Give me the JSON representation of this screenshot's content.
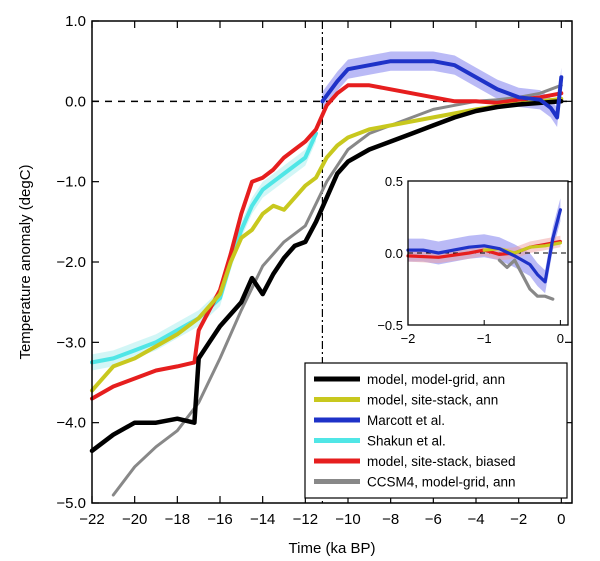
{
  "chart_data": [
    {
      "type": "line",
      "xlabel": "Time (ka BP)",
      "ylabel": "Temperature anomaly (degC)",
      "xlim": [
        -22,
        0.5
      ],
      "ylim": [
        -5.0,
        1.0
      ],
      "x_ticks": [
        -22,
        -20,
        -18,
        -16,
        -14,
        -12,
        -10,
        -8,
        -6,
        -4,
        -2,
        0
      ],
      "x_tick_labels": [
        "−22",
        "−20",
        "−18",
        "−16",
        "−14",
        "−12",
        "−10",
        "−8",
        "−6",
        "−4",
        "−2",
        "0"
      ],
      "y_ticks": [
        -5.0,
        -4.0,
        -3.0,
        -2.0,
        -1.0,
        0.0,
        1.0
      ],
      "y_tick_labels": [
        "−5.0",
        "−4.0",
        "−3.0",
        "−2.0",
        "−1.0",
        "0.0",
        "1.0"
      ],
      "reference_lines": {
        "zero_line_y": 0.0,
        "vertical_line_x": -11.2
      },
      "grid": false,
      "legend_position": "bottom-right",
      "series": [
        {
          "name": "model, model-grid, ann",
          "color": "#000000",
          "x": [
            -22,
            -21,
            -20,
            -19,
            -18,
            -17.2,
            -17,
            -16.5,
            -16,
            -15,
            -14.5,
            -14,
            -13.5,
            -13,
            -12.5,
            -12,
            -11.5,
            -11,
            -10.5,
            -10,
            -9,
            -8,
            -7,
            -6,
            -5,
            -4,
            -3,
            -2,
            -1,
            0
          ],
          "y": [
            -4.35,
            -4.15,
            -4.0,
            -4.0,
            -3.95,
            -4.0,
            -3.2,
            -3.0,
            -2.8,
            -2.5,
            -2.2,
            -2.4,
            -2.15,
            -1.95,
            -1.8,
            -1.75,
            -1.5,
            -1.2,
            -0.9,
            -0.75,
            -0.6,
            -0.5,
            -0.4,
            -0.3,
            -0.2,
            -0.12,
            -0.07,
            -0.04,
            -0.02,
            0.0
          ]
        },
        {
          "name": "model, site-stack, ann",
          "color": "#c8c81e",
          "x": [
            -22,
            -21,
            -20,
            -19,
            -18,
            -17,
            -16,
            -15.5,
            -15,
            -14.5,
            -14,
            -13.5,
            -13,
            -12.5,
            -12,
            -11.5,
            -11,
            -10.5,
            -10,
            -9,
            -8,
            -7,
            -6,
            -5,
            -4,
            -3,
            -2,
            -1,
            0
          ],
          "y": [
            -3.6,
            -3.3,
            -3.2,
            -3.05,
            -2.9,
            -2.7,
            -2.4,
            -2.0,
            -1.7,
            -1.6,
            -1.4,
            -1.3,
            -1.35,
            -1.2,
            -1.05,
            -0.95,
            -0.7,
            -0.55,
            -0.45,
            -0.35,
            -0.3,
            -0.25,
            -0.2,
            -0.15,
            -0.1,
            -0.06,
            -0.03,
            0.0,
            0.03
          ]
        },
        {
          "name": "Marcott et al.",
          "color": "#1e32c8",
          "x": [
            -11.2,
            -10.5,
            -10,
            -9,
            -8,
            -7,
            -6,
            -5,
            -4,
            -3,
            -2,
            -1,
            -0.5,
            -0.2,
            0
          ],
          "y": [
            0.0,
            0.25,
            0.4,
            0.45,
            0.5,
            0.5,
            0.5,
            0.45,
            0.3,
            0.15,
            0.05,
            0.02,
            -0.08,
            -0.2,
            0.3
          ]
        },
        {
          "name": "Shakun et al.",
          "color": "#50e6e6",
          "x": [
            -22,
            -21,
            -20,
            -19,
            -18,
            -17,
            -16,
            -15.5,
            -15,
            -14.5,
            -14,
            -13,
            -12,
            -11.5
          ],
          "y": [
            -3.25,
            -3.2,
            -3.1,
            -3.0,
            -2.85,
            -2.7,
            -2.45,
            -2.0,
            -1.6,
            -1.3,
            -1.1,
            -0.9,
            -0.7,
            -0.4
          ]
        },
        {
          "name": "model, site-stack, biased",
          "color": "#e61e1e",
          "x": [
            -22,
            -21,
            -20,
            -19,
            -18,
            -17.2,
            -17,
            -16.5,
            -16,
            -15.5,
            -15,
            -14.5,
            -14,
            -13.5,
            -13,
            -12.5,
            -12,
            -11.5,
            -11,
            -10.5,
            -10,
            -9,
            -8,
            -7,
            -6,
            -5,
            -4,
            -3,
            -2,
            -1,
            0
          ],
          "y": [
            -3.7,
            -3.55,
            -3.45,
            -3.35,
            -3.3,
            -3.25,
            -2.85,
            -2.6,
            -2.35,
            -1.9,
            -1.4,
            -1.0,
            -0.95,
            -0.85,
            -0.7,
            -0.6,
            -0.5,
            -0.35,
            -0.05,
            0.1,
            0.2,
            0.2,
            0.15,
            0.1,
            0.05,
            0.0,
            0.0,
            -0.02,
            0.02,
            0.05,
            0.1
          ]
        },
        {
          "name": "CCSM4, model-grid, ann",
          "color": "#888888",
          "x": [
            -21,
            -20,
            -19,
            -18,
            -17,
            -16,
            -15,
            -14,
            -13,
            -12,
            -11,
            -10,
            -9,
            -8,
            -7,
            -6,
            -5,
            -4,
            -3,
            -2,
            -1,
            0
          ],
          "y": [
            -4.9,
            -4.55,
            -4.3,
            -4.1,
            -3.75,
            -3.2,
            -2.6,
            -2.05,
            -1.75,
            -1.55,
            -1.0,
            -0.6,
            -0.4,
            -0.3,
            -0.2,
            -0.1,
            -0.05,
            0.0,
            0.02,
            0.05,
            0.1,
            0.2
          ]
        }
      ]
    },
    {
      "type": "line",
      "xlim": [
        -2,
        0.1
      ],
      "ylim": [
        -0.5,
        0.5
      ],
      "x_ticks": [
        -2,
        -1,
        0
      ],
      "x_tick_labels": [
        "−2",
        "−1",
        "0"
      ],
      "y_ticks": [
        -0.5,
        0.0,
        0.5
      ],
      "y_tick_labels": [
        "−0.5",
        "0.0",
        "0.5"
      ],
      "reference_lines": {
        "zero_line_y": 0.0
      },
      "grid": false,
      "series": [
        {
          "name": "Marcott et al.",
          "color": "#1e32c8",
          "x": [
            -2,
            -1.8,
            -1.6,
            -1.4,
            -1.2,
            -1.0,
            -0.8,
            -0.6,
            -0.4,
            -0.3,
            -0.2,
            -0.1,
            0
          ],
          "y": [
            0.02,
            0.02,
            0.0,
            0.02,
            0.04,
            0.05,
            0.03,
            -0.02,
            -0.08,
            -0.15,
            -0.2,
            0.1,
            0.3
          ]
        },
        {
          "name": "model, site-stack, biased",
          "color": "#e61e1e",
          "x": [
            -2,
            -1.6,
            -1.2,
            -1.0,
            -0.8,
            -0.6,
            -0.4,
            -0.2,
            0
          ],
          "y": [
            -0.02,
            -0.03,
            0.0,
            0.02,
            -0.01,
            0.0,
            0.04,
            0.06,
            0.08
          ]
        },
        {
          "name": "model, site-stack, ann",
          "color": "#c8c81e",
          "x": [
            -1.0,
            -0.8,
            -0.6,
            -0.4,
            -0.2,
            0
          ],
          "y": [
            0.02,
            0.03,
            0.0,
            0.04,
            0.05,
            0.07
          ]
        },
        {
          "name": "CCSM4, model-grid, ann",
          "color": "#888888",
          "x": [
            -0.8,
            -0.7,
            -0.6,
            -0.5,
            -0.4,
            -0.3,
            -0.2,
            -0.1
          ],
          "y": [
            -0.05,
            -0.1,
            -0.05,
            -0.15,
            -0.25,
            -0.3,
            -0.3,
            -0.32
          ]
        }
      ]
    }
  ],
  "legend": {
    "entries": [
      {
        "label": "model, model-grid, ann",
        "color": "#000000"
      },
      {
        "label": "model, site-stack, ann",
        "color": "#c8c81e"
      },
      {
        "label": "Marcott et al.",
        "color": "#1e32c8"
      },
      {
        "label": "Shakun et al.",
        "color": "#50e6e6"
      },
      {
        "label": "model, site-stack, biased",
        "color": "#e61e1e"
      },
      {
        "label": "CCSM4, model-grid, ann",
        "color": "#888888"
      }
    ]
  }
}
